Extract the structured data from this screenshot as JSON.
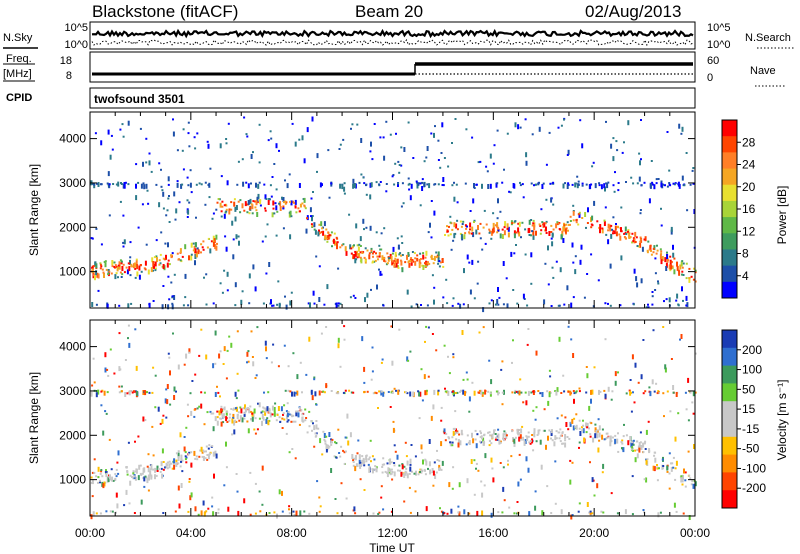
{
  "header": {
    "station": "Blackstone (fitACF)",
    "beam": "Beam 20",
    "date": "02/Aug/2013"
  },
  "summary": {
    "left_labels": {
      "nsky": "N.Sky",
      "freq": "Freq.",
      "freq_unit": "[MHz]",
      "cpid": "CPID"
    },
    "right_labels": {
      "nsearch": "N.Search",
      "nave": "Nave"
    },
    "noise_ticks_left": [
      "10^5",
      "10^0"
    ],
    "noise_ticks_right": [
      "10^5",
      "10^0"
    ],
    "freq_ticks": [
      "18",
      "8"
    ],
    "nave_ticks": [
      "60",
      "0"
    ],
    "cpid_text": "twofsound 3501"
  },
  "chart_data": [
    {
      "type": "heatmap",
      "panel": "power",
      "ylabel": "Slant Range [km]",
      "xlabel": "",
      "y_ticks": [
        1000,
        2000,
        3000,
        4000
      ],
      "ylim": [
        180,
        4600
      ],
      "xlim_hours": [
        0,
        24
      ],
      "colorbar": {
        "label": "Power [dB]",
        "ticks": [
          "4",
          "8",
          "12",
          "16",
          "20",
          "24",
          "28"
        ],
        "colors": [
          "#0000ff",
          "#1d4fa8",
          "#2b7a8a",
          "#3e9c5e",
          "#5fb847",
          "#a8d438",
          "#e8e030",
          "#f5a623",
          "#ff7f27",
          "#ff4500",
          "#ff0000"
        ]
      }
    },
    {
      "type": "heatmap",
      "panel": "velocity",
      "ylabel": "Slant Range [km]",
      "xlabel": "Time UT",
      "x_ticks": [
        "00:00",
        "04:00",
        "08:00",
        "12:00",
        "16:00",
        "20:00",
        "00:00"
      ],
      "y_ticks": [
        1000,
        2000,
        3000,
        4000
      ],
      "ylim": [
        180,
        4600
      ],
      "xlim_hours": [
        0,
        24
      ],
      "colorbar": {
        "label": "Velocity [m s⁻¹]",
        "ticks": [
          "200",
          "100",
          "50",
          "15",
          "-15",
          "-50",
          "-100",
          "-200"
        ],
        "colors": [
          "#1a3cb4",
          "#2f6fd0",
          "#3c9a5c",
          "#66cc33",
          "#c8c8c8",
          "#c8c8c8",
          "#ffc000",
          "#ff8c00",
          "#ff4400",
          "#ff0000"
        ]
      }
    }
  ]
}
